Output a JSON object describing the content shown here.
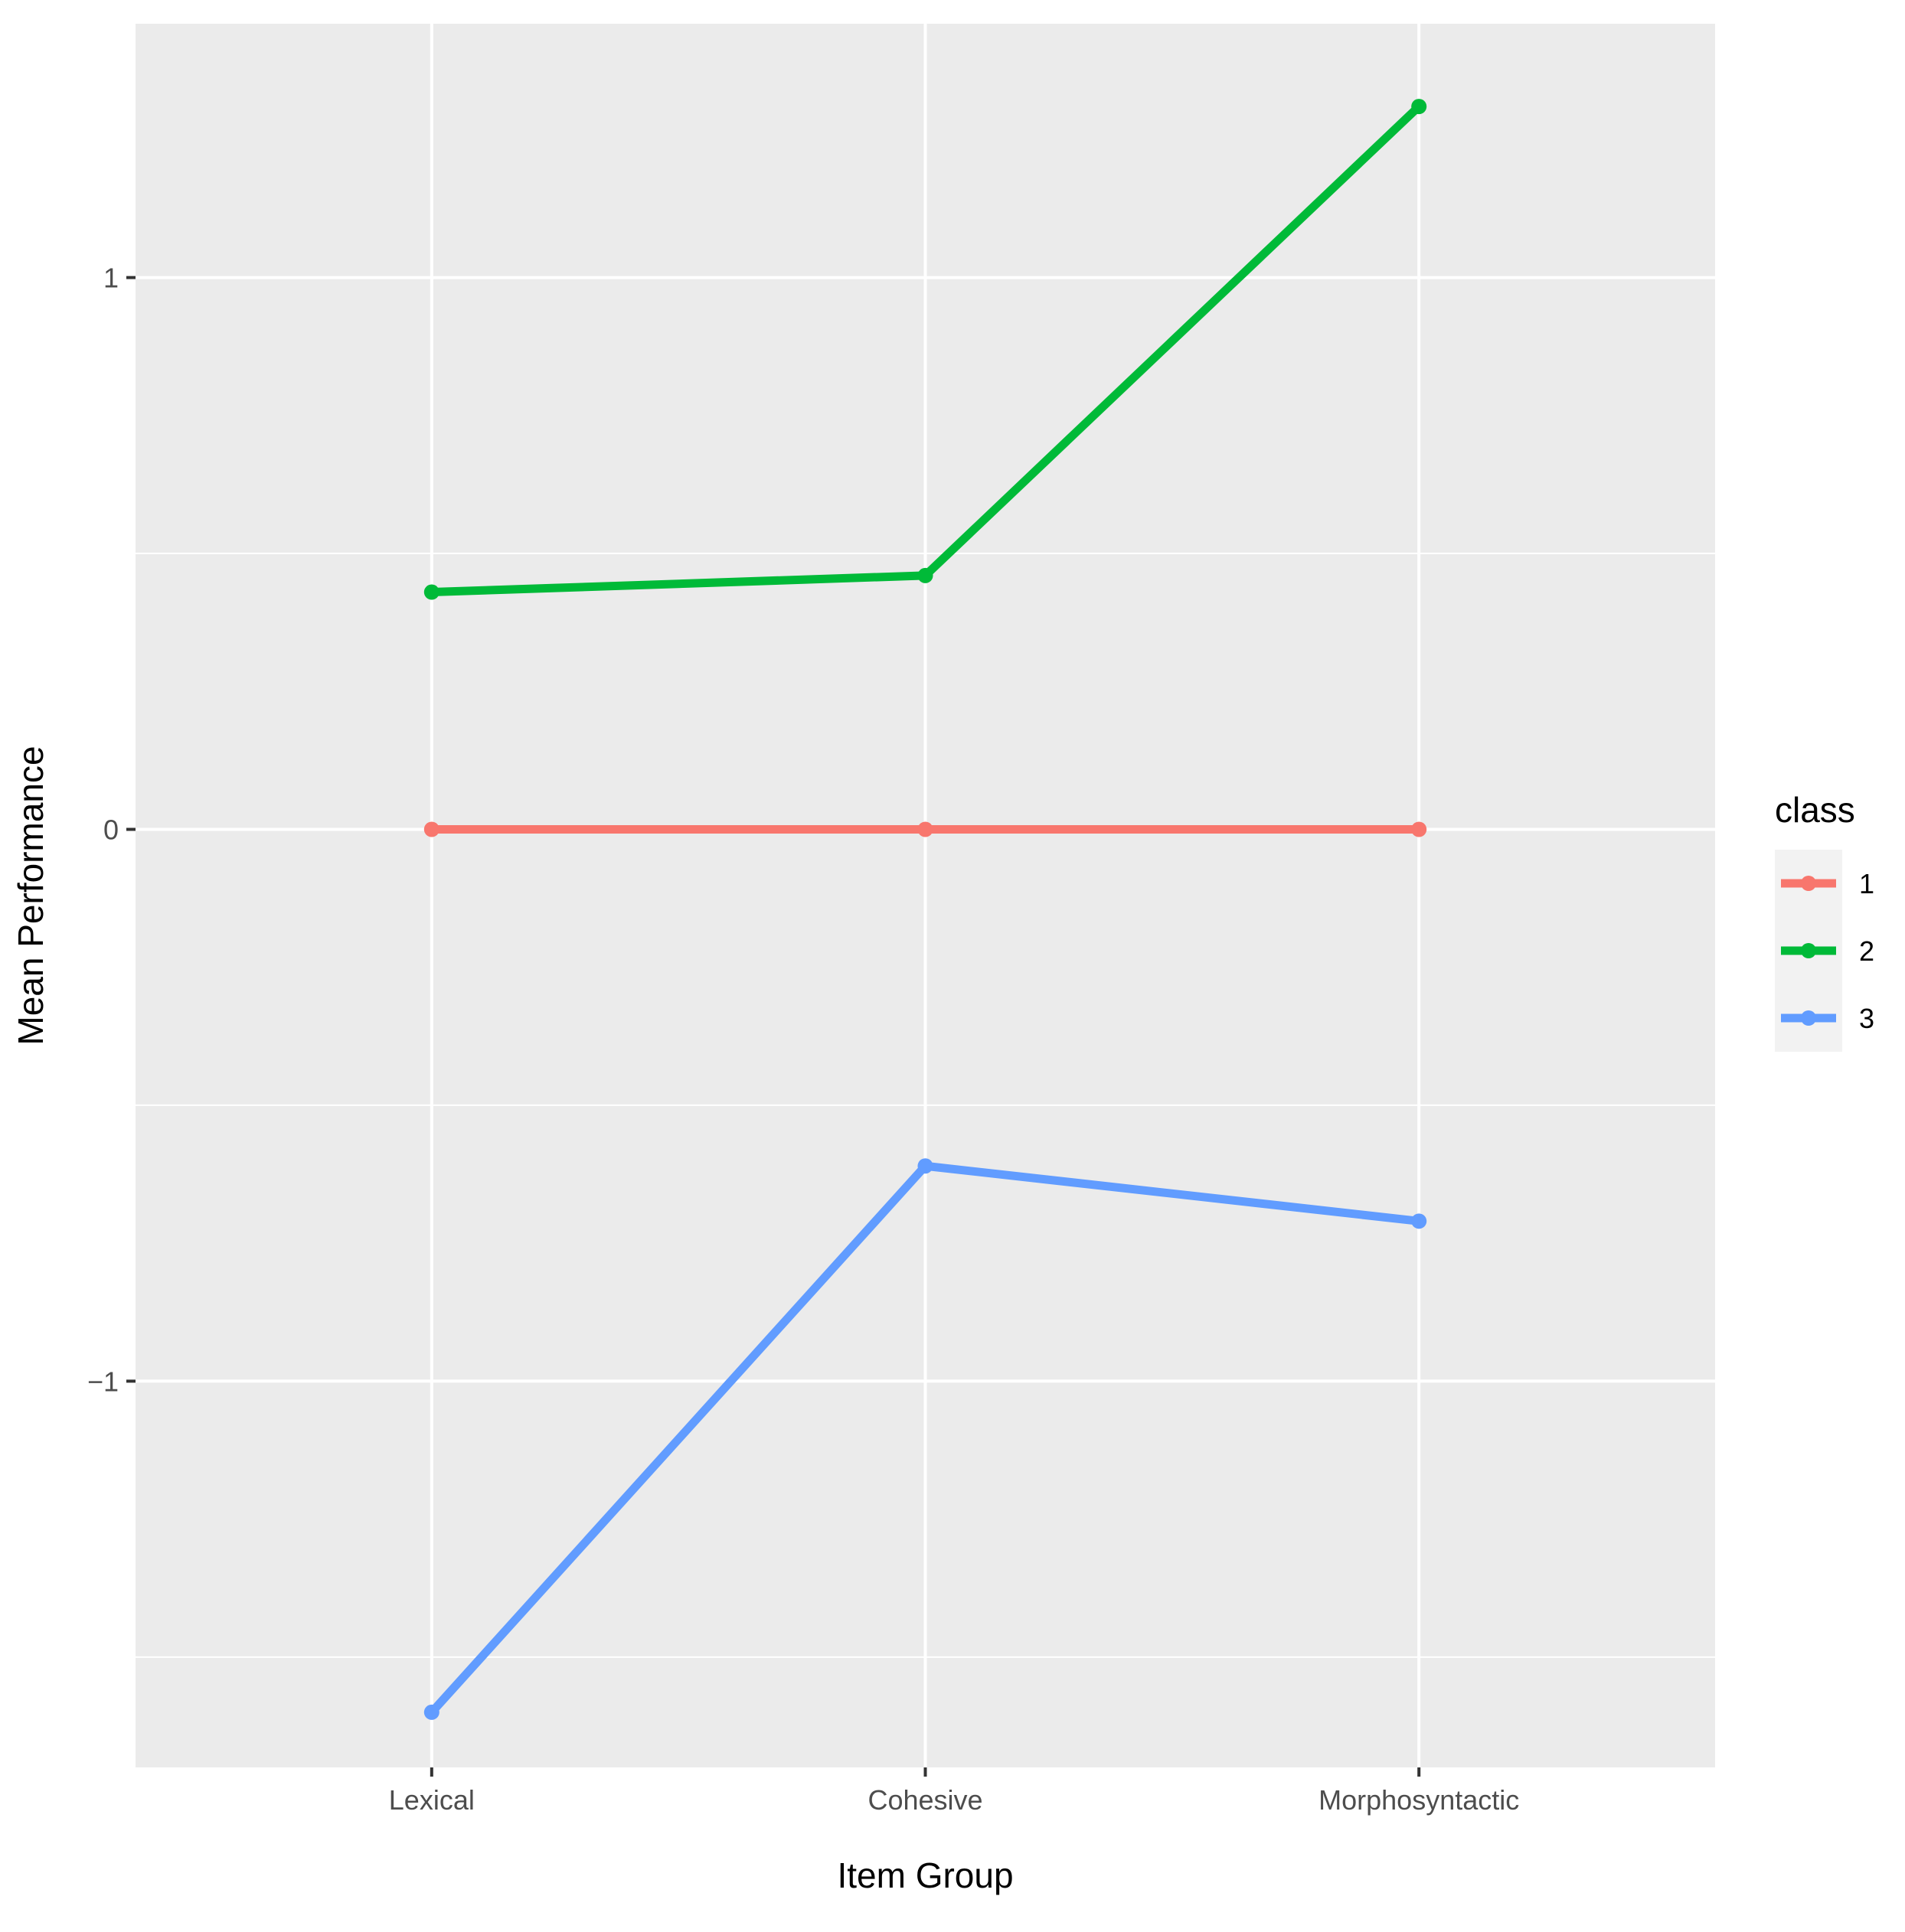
{
  "chart_data": {
    "type": "line",
    "title": "",
    "xlabel": "Item Group",
    "ylabel": "Mean Performance",
    "categories": [
      "Lexical",
      "Cohesive",
      "Morphosyntactic"
    ],
    "ylim": [
      -1.7,
      1.46
    ],
    "yticks": [
      {
        "value": 1,
        "label": "1"
      },
      {
        "value": 0,
        "label": "0"
      },
      {
        "value": -1,
        "label": "−1"
      }
    ],
    "minor_yticks": [
      -1.5,
      -0.5,
      0.5
    ],
    "grid": true,
    "legend": {
      "title": "class",
      "position": "right"
    },
    "series": [
      {
        "name": "1",
        "color": "#F8766D",
        "values": [
          0,
          0,
          0
        ]
      },
      {
        "name": "2",
        "color": "#00BA38",
        "values": [
          0.43,
          0.46,
          1.31
        ]
      },
      {
        "name": "3",
        "color": "#619CFF",
        "values": [
          -1.6,
          -0.61,
          -0.71
        ]
      }
    ],
    "colors": {
      "panel_background": "#EBEBEB",
      "grid": "#FFFFFF",
      "legend_key_background": "#F2F2F2",
      "tick_mark": "#333333"
    }
  }
}
